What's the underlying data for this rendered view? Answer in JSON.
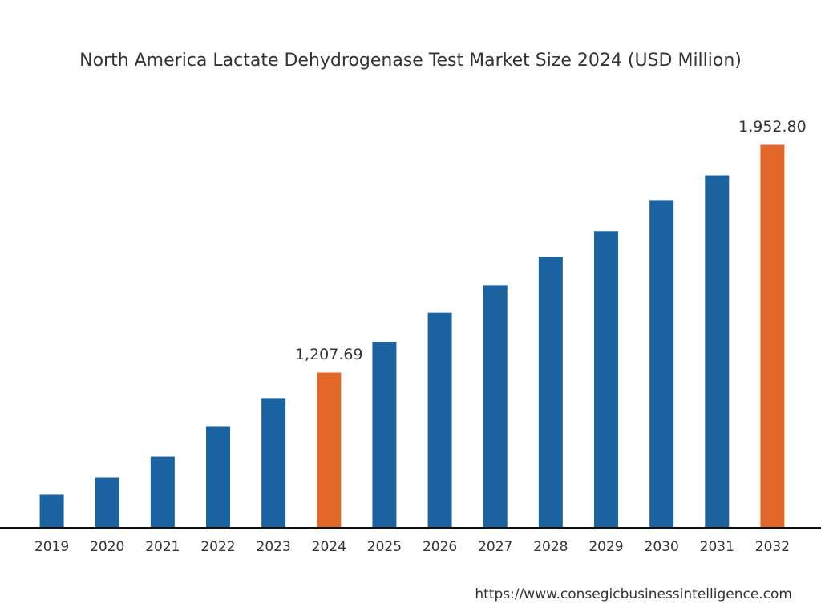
{
  "chart_data": {
    "type": "bar",
    "title": "North America Lactate Dehydrogenase Test Market Size 2024 (USD Million)",
    "categories": [
      "2019",
      "2020",
      "2021",
      "2022",
      "2023",
      "2024",
      "2025",
      "2026",
      "2027",
      "2028",
      "2029",
      "2030",
      "2031",
      "2032"
    ],
    "values": [
      809,
      864,
      932,
      1032,
      1124,
      1207.69,
      1307,
      1404,
      1494,
      1586,
      1670,
      1772,
      1853,
      1952.8
    ],
    "value_labels": [
      null,
      null,
      null,
      null,
      null,
      "1,207.69",
      null,
      null,
      null,
      null,
      null,
      null,
      null,
      "1,952.80"
    ],
    "colors": [
      "#1a63a0",
      "#1a63a0",
      "#1a63a0",
      "#1a63a0",
      "#1a63a0",
      "#e2682a",
      "#1a63a0",
      "#1a63a0",
      "#1a63a0",
      "#1a63a0",
      "#1a63a0",
      "#1a63a0",
      "#1a63a0",
      "#e2682a"
    ],
    "ylim": [
      700,
      2100
    ],
    "source": "https://www.consegicbusinessintelligence.com"
  }
}
